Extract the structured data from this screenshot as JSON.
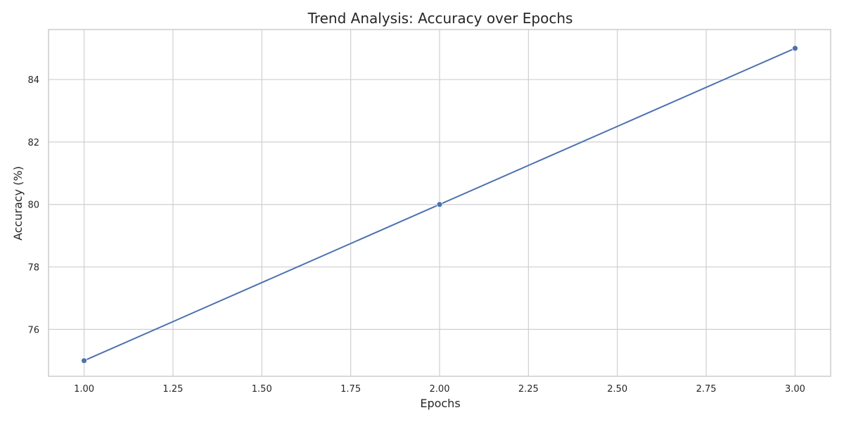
{
  "chart_data": {
    "type": "line",
    "title": "Trend Analysis: Accuracy over Epochs",
    "xlabel": "Epochs",
    "ylabel": "Accuracy (%)",
    "xlim": [
      0.9,
      3.1
    ],
    "ylim": [
      74.5,
      85.6
    ],
    "xticks": [
      1.0,
      1.25,
      1.5,
      1.75,
      2.0,
      2.25,
      2.5,
      2.75,
      3.0
    ],
    "xtick_labels": [
      "1.00",
      "1.25",
      "1.50",
      "1.75",
      "2.00",
      "2.25",
      "2.50",
      "2.75",
      "3.00"
    ],
    "yticks": [
      76,
      78,
      80,
      82,
      84
    ],
    "ytick_labels": [
      "76",
      "78",
      "80",
      "82",
      "84"
    ],
    "grid": true,
    "series": [
      {
        "x": [
          1,
          2,
          3
        ],
        "y": [
          75,
          80,
          85
        ],
        "color": "#4c72b0",
        "marker": "circle"
      }
    ]
  }
}
